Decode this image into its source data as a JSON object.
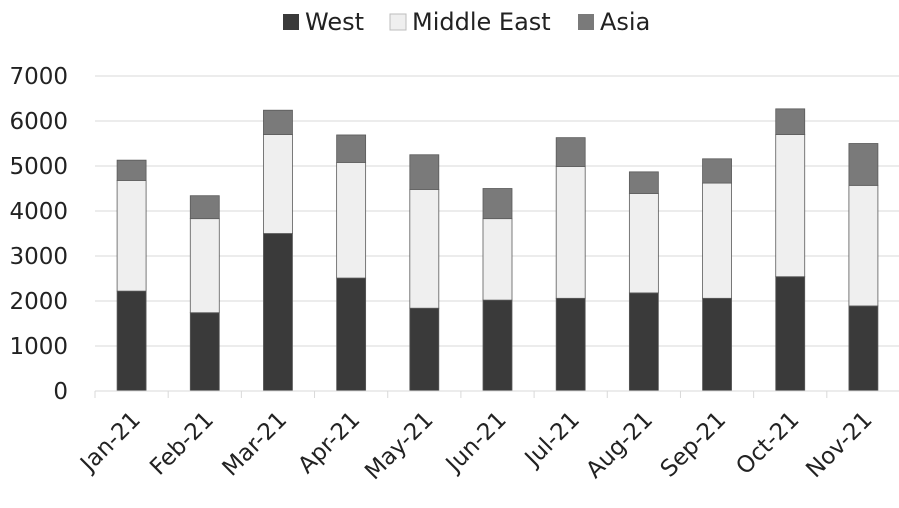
{
  "chart_data": {
    "type": "bar",
    "stacked": true,
    "title": "",
    "xlabel": "",
    "ylabel": "",
    "categories": [
      "Jan-21",
      "Feb-21",
      "Mar-21",
      "Apr-21",
      "May-21",
      "Jun-21",
      "Jul-21",
      "Aug-21",
      "Sep-21",
      "Oct-21",
      "Nov-21"
    ],
    "series": [
      {
        "name": "West",
        "color": "#3a3a3a",
        "values": [
          2220,
          1740,
          3500,
          2510,
          1840,
          2020,
          2060,
          2180,
          2060,
          2540,
          1890
        ]
      },
      {
        "name": "Middle East",
        "color": "#efefef",
        "values": [
          2460,
          2090,
          2200,
          2570,
          2640,
          1810,
          2930,
          2210,
          2560,
          3160,
          2680
        ]
      },
      {
        "name": "Asia",
        "color": "#7a7a7a",
        "values": [
          450,
          510,
          540,
          610,
          770,
          670,
          640,
          480,
          540,
          570,
          930
        ]
      }
    ],
    "ylim": [
      0,
      7000
    ],
    "yticks": [
      0,
      1000,
      2000,
      3000,
      4000,
      5000,
      6000,
      7000
    ],
    "grid": true,
    "legend_position": "top"
  }
}
